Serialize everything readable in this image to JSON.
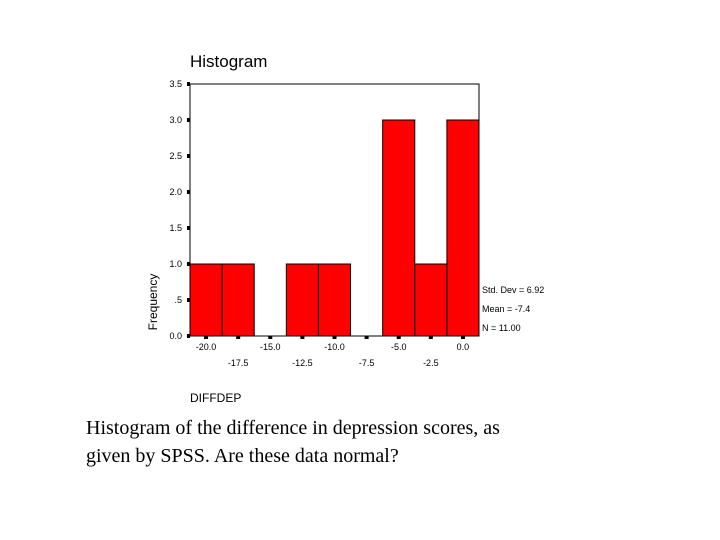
{
  "chart_data": {
    "type": "bar",
    "title": "Histogram",
    "xlabel": "DIFFDEP",
    "ylabel": "Frequency",
    "bins": [
      {
        "center": -20.0,
        "count": 1
      },
      {
        "center": -17.5,
        "count": 1
      },
      {
        "center": -15.0,
        "count": 0
      },
      {
        "center": -12.5,
        "count": 1
      },
      {
        "center": -10.0,
        "count": 1
      },
      {
        "center": -7.5,
        "count": 0
      },
      {
        "center": -5.0,
        "count": 3
      },
      {
        "center": -2.5,
        "count": 1
      },
      {
        "center": 0.0,
        "count": 3
      }
    ],
    "bin_width": 2.5,
    "ylim": [
      0,
      3.5
    ],
    "y_ticks": [
      0.0,
      0.5,
      1.0,
      1.5,
      2.0,
      2.5,
      3.0,
      3.5
    ],
    "y_tick_labels": [
      "0.0",
      ".5",
      "1.0",
      "1.5",
      "2.0",
      "2.5",
      "3.0",
      "3.5"
    ],
    "x_ticks_row1": [
      "-20.0",
      "-15.0",
      "-10.0",
      "-5.0",
      "0.0"
    ],
    "x_ticks_row2": [
      "-17.5",
      "-12.5",
      "-7.5",
      "-2.5"
    ],
    "stats": [
      "Std. Dev = 6.92",
      "Mean = -7.4",
      "N = 11.00"
    ],
    "bar_color": "#ff0000",
    "grid": false
  },
  "caption": {
    "line1": "Histogram of the difference in depression scores, as",
    "line2": "given by SPSS.  Are these data normal?"
  }
}
